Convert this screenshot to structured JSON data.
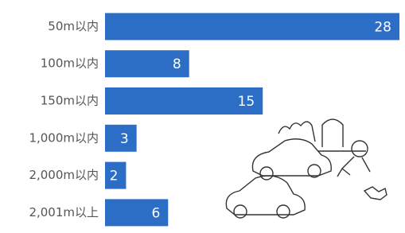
{
  "chart_data": {
    "type": "bar",
    "orientation": "horizontal",
    "categories": [
      "50m以内",
      "100m以内",
      "150m以内",
      "1,000m以内",
      "2,000m以内",
      "2,001m以上"
    ],
    "values": [
      28,
      8,
      15,
      3,
      2,
      6
    ],
    "color": "#2c6ec6"
  }
}
